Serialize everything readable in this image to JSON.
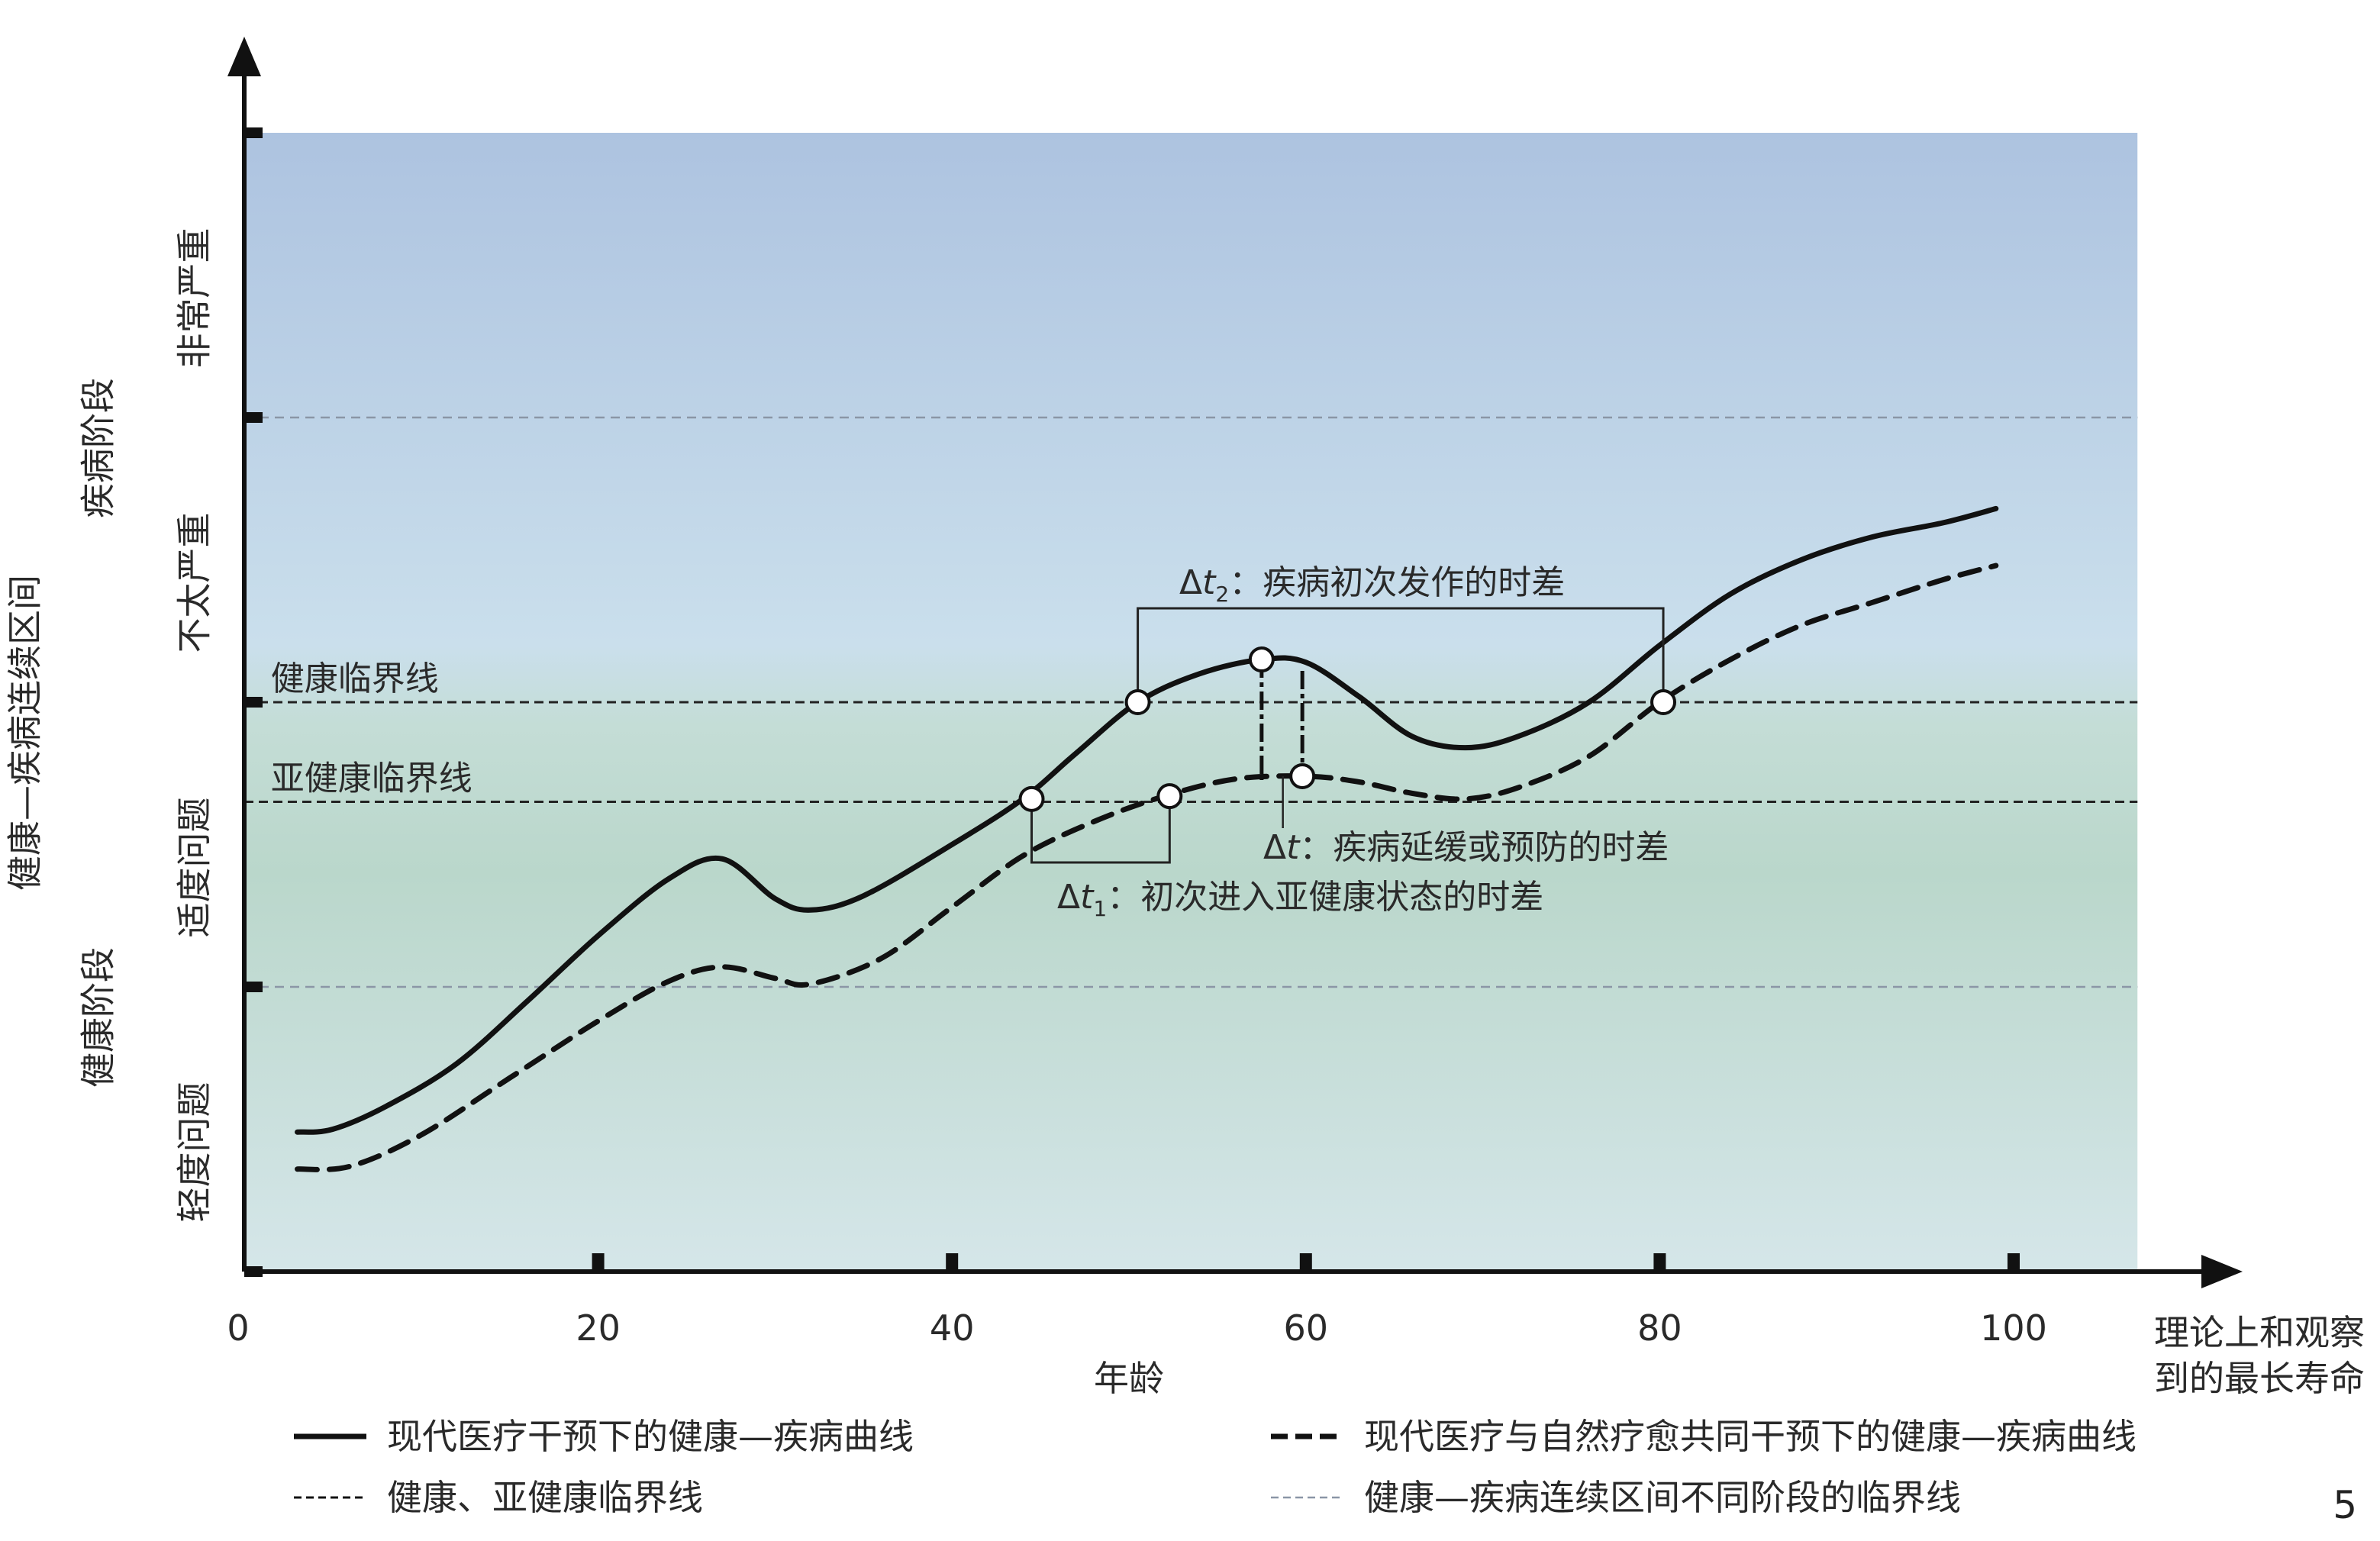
{
  "chart_data": {
    "type": "line",
    "x_axis": {
      "label": "年龄",
      "ticks": [
        0,
        20,
        40,
        60,
        80,
        100
      ],
      "range": [
        0,
        107
      ],
      "end_label_line1": "理论上和观察",
      "end_label_line2": "到的最长寿命"
    },
    "y_axis": {
      "label": "健康—疾病连续区间",
      "range": [
        0,
        4
      ],
      "severity_labels": [
        {
          "text": "轻度问题",
          "from": 0,
          "to": 1
        },
        {
          "text": "适度问题",
          "from": 1,
          "to": 2
        },
        {
          "text": "不太严重",
          "from": 2,
          "to": 3
        },
        {
          "text": "非常严重",
          "from": 3,
          "to": 4
        }
      ],
      "stage_labels": [
        {
          "text": "健康阶段",
          "from": 0,
          "to": 2
        },
        {
          "text": "疾病阶段",
          "from": 2,
          "to": 4
        }
      ]
    },
    "threshold_lines": [
      {
        "name": "健康临界线",
        "y": 2.0,
        "kind": "health"
      },
      {
        "name": "亚健康临界线",
        "y": 1.65,
        "kind": "health"
      },
      {
        "name": "",
        "y": 1.0,
        "kind": "stage"
      },
      {
        "name": "",
        "y": 3.0,
        "kind": "stage"
      }
    ],
    "series": [
      {
        "name": "现代医疗干预下的健康—疾病曲线",
        "style": "solid",
        "points": [
          [
            3,
            0.49
          ],
          [
            5,
            0.5
          ],
          [
            8,
            0.58
          ],
          [
            12,
            0.73
          ],
          [
            16,
            0.95
          ],
          [
            20,
            1.18
          ],
          [
            24,
            1.38
          ],
          [
            27,
            1.45
          ],
          [
            30,
            1.31
          ],
          [
            32,
            1.27
          ],
          [
            35,
            1.32
          ],
          [
            40,
            1.5
          ],
          [
            44,
            1.66
          ],
          [
            47,
            1.82
          ],
          [
            50.5,
            2.0
          ],
          [
            54,
            2.1
          ],
          [
            57.5,
            2.15
          ],
          [
            60,
            2.14
          ],
          [
            63,
            2.02
          ],
          [
            66,
            1.88
          ],
          [
            69,
            1.84
          ],
          [
            72,
            1.88
          ],
          [
            76,
            2.0
          ],
          [
            80,
            2.2
          ],
          [
            84,
            2.38
          ],
          [
            88,
            2.5
          ],
          [
            92,
            2.58
          ],
          [
            96,
            2.63
          ],
          [
            99,
            2.68
          ]
        ]
      },
      {
        "name": "现代医疗与自然疗愈共同干预下的健康—疾病曲线",
        "style": "dashed",
        "points": [
          [
            3,
            0.36
          ],
          [
            6,
            0.37
          ],
          [
            10,
            0.48
          ],
          [
            15,
            0.68
          ],
          [
            20,
            0.88
          ],
          [
            24,
            1.02
          ],
          [
            27,
            1.07
          ],
          [
            30,
            1.03
          ],
          [
            32,
            1.01
          ],
          [
            36,
            1.1
          ],
          [
            40,
            1.28
          ],
          [
            44,
            1.46
          ],
          [
            48,
            1.58
          ],
          [
            52,
            1.67
          ],
          [
            56,
            1.73
          ],
          [
            60,
            1.74
          ],
          [
            63,
            1.72
          ],
          [
            66,
            1.68
          ],
          [
            69,
            1.66
          ],
          [
            72,
            1.7
          ],
          [
            76,
            1.81
          ],
          [
            80,
            2.0
          ],
          [
            84,
            2.15
          ],
          [
            88,
            2.27
          ],
          [
            92,
            2.35
          ],
          [
            96,
            2.43
          ],
          [
            99,
            2.48
          ]
        ]
      }
    ],
    "markers": [
      {
        "x": 44.5,
        "y": 1.66,
        "series": "solid"
      },
      {
        "x": 52.3,
        "y": 1.67,
        "series": "dashed"
      },
      {
        "x": 50.5,
        "y": 2.0,
        "series": "solid"
      },
      {
        "x": 80.2,
        "y": 2.0,
        "series": "dashed"
      },
      {
        "x": 57.5,
        "y": 2.15,
        "series": "solid"
      },
      {
        "x": 59.8,
        "y": 1.74,
        "series": "dashed"
      }
    ],
    "annotations": {
      "dt1": {
        "symbol": "Δt",
        "sub": "1",
        "text": "：初次进入亚健康状态的时差",
        "x_from": 44.5,
        "x_to": 52.3
      },
      "dt2": {
        "symbol": "Δt",
        "sub": "2",
        "text": "：疾病初次发作的时差",
        "x_from": 50.5,
        "x_to": 80.2
      },
      "dt": {
        "symbol": "Δt",
        "sub": "",
        "text": "：疾病延缓或预防的时差",
        "x_from": 57.5,
        "x_to": 59.8
      }
    },
    "legend": {
      "placement": "bottom",
      "items": [
        {
          "text": "现代医疗干预下的健康—疾病曲线",
          "style": "solid-thick"
        },
        {
          "text": "现代医疗与自然疗愈共同干预下的健康—疾病曲线",
          "style": "dashed-thick"
        },
        {
          "text": "健康、亚健康临界线",
          "style": "dashed-thin-black"
        },
        {
          "text": "健康—疾病连续区间不同阶段的临界线",
          "style": "dashed-thin-gray"
        }
      ]
    },
    "colors": {
      "bg_top": "#adc3e0",
      "bg_mid": "#c9dfec",
      "bg_green": "#bcd8ce",
      "bg_bottom": "#d4e5e9",
      "curve": "#111111",
      "stage_line": "#8b96a6"
    }
  },
  "page_number": "5"
}
